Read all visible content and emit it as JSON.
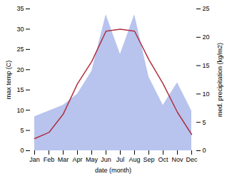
{
  "chart_data": {
    "type": "line",
    "categories": [
      "Jan",
      "Feb",
      "Mar",
      "Apr",
      "May",
      "Jun",
      "Jul",
      "Aug",
      "Sep",
      "Oct",
      "Nov",
      "Dec"
    ],
    "xlabel": "date (month)",
    "ylabel": "max temp (C)",
    "y2label": "med. precipitation (kg/m2)",
    "series": [
      {
        "type": "area",
        "axis": "y2",
        "color": "#b8c4ee",
        "values": [
          6,
          7,
          8,
          10,
          14,
          24,
          17,
          24,
          13,
          8,
          12,
          7
        ]
      },
      {
        "type": "line",
        "color": "#b03040",
        "values": [
          3.0,
          4.5,
          9.0,
          16.5,
          22.0,
          29.5,
          30.0,
          29.5,
          22.5,
          16.5,
          9.5,
          4.0
        ]
      }
    ],
    "ylim": [
      0,
      35
    ],
    "yticks": [
      0,
      5,
      10,
      15,
      20,
      25,
      30,
      35
    ],
    "y2lim": [
      0,
      25
    ],
    "y2ticks": [
      0,
      5,
      10,
      15,
      20,
      25
    ],
    "grid": false
  }
}
